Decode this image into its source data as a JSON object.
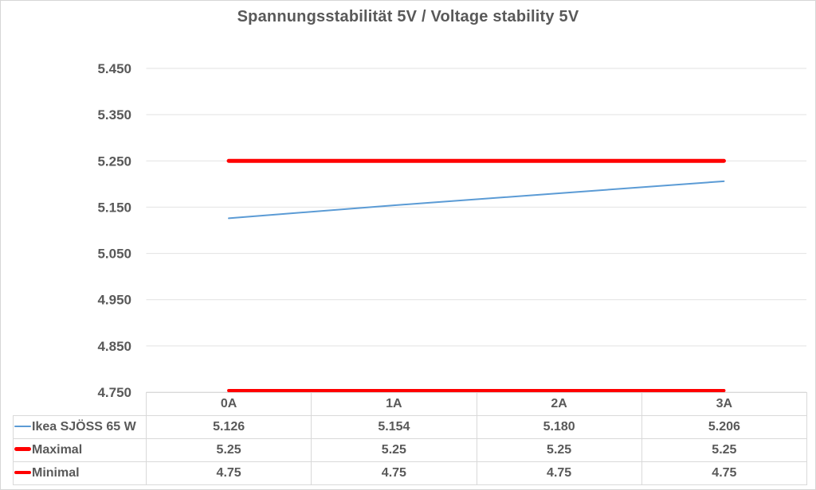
{
  "chart_data": {
    "type": "line",
    "title": "Spannungsstabilität 5V / Voltage stability 5V",
    "xlabel": "",
    "ylabel": "",
    "categories": [
      "0A",
      "1A",
      "2A",
      "3A"
    ],
    "series": [
      {
        "name": "Ikea SJÖSS 65 W",
        "values": [
          5.126,
          5.154,
          5.18,
          5.206
        ],
        "color": "#5B9BD5",
        "width": 2
      },
      {
        "name": "Maximal",
        "values": [
          5.25,
          5.25,
          5.25,
          5.25
        ],
        "color": "#FF0000",
        "width": 5
      },
      {
        "name": "Minimal",
        "values": [
          4.75,
          4.75,
          4.75,
          4.75
        ],
        "color": "#FF0000",
        "width": 4
      }
    ],
    "ylim": [
      4.75,
      5.45
    ],
    "ytick_step": 0.1,
    "yticks": [
      "5.450",
      "5.350",
      "5.250",
      "5.150",
      "5.050",
      "4.950",
      "4.850",
      "4.750"
    ],
    "grid": true,
    "gridline_color": "#e2e2e2",
    "text_color": "#595959",
    "legend_position": "data-table-left"
  },
  "table": {
    "corner_label": "",
    "rows": [
      {
        "label": "Ikea SJÖSS 65 W",
        "marker_color": "#5B9BD5",
        "values": [
          "5.126",
          "5.154",
          "5.180",
          "5.206"
        ]
      },
      {
        "label": "Maximal",
        "marker_color": "#FF0000",
        "values": [
          "5.25",
          "5.25",
          "5.25",
          "5.25"
        ]
      },
      {
        "label": "Minimal",
        "marker_color": "#FF0000",
        "values": [
          "4.75",
          "4.75",
          "4.75",
          "4.75"
        ]
      }
    ]
  }
}
